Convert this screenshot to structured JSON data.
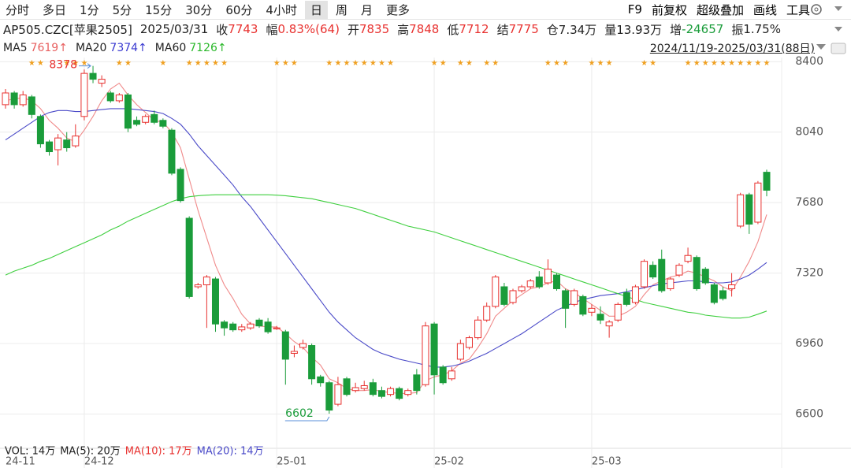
{
  "toolbar": {
    "periods": [
      "分时",
      "多日",
      "1分",
      "5分",
      "15分",
      "30分",
      "60分",
      "4小时",
      "日",
      "周",
      "月",
      "更多"
    ],
    "selected": 8,
    "tools": [
      "F9",
      "前复权",
      "超级叠加",
      "画线",
      "工具"
    ]
  },
  "quote": {
    "code": "AP505.CZC[苹果2505]",
    "date": "2025/03/31",
    "fields": [
      {
        "label": "收",
        "value": "7743",
        "color": "#e8312f"
      },
      {
        "label": "幅",
        "value": "0.83%(64)",
        "color": "#e8312f"
      },
      {
        "label": "开",
        "value": "7835",
        "color": "#e8312f"
      },
      {
        "label": "高",
        "value": "7848",
        "color": "#e8312f"
      },
      {
        "label": "低",
        "value": "7712",
        "color": "#e8312f"
      },
      {
        "label": "结",
        "value": "7775",
        "color": "#e8312f"
      },
      {
        "label": "仓",
        "value": "7.34万",
        "color": "#222"
      },
      {
        "label": "量",
        "value": "13.93万",
        "color": "#222"
      },
      {
        "label": "增",
        "value": "-24657",
        "color": "#1a9c3a"
      },
      {
        "label": "振",
        "value": "1.75%",
        "color": "#222"
      }
    ]
  },
  "range_label": "2024/11/19-2025/03/31(88日)",
  "chart_data": {
    "type": "candlestick",
    "up_color": "#e8312f",
    "down_color": "#1a9c3a",
    "grid": true,
    "categories": [
      "24-11",
      null,
      null,
      null,
      null,
      null,
      null,
      null,
      null,
      "24-12",
      null,
      null,
      null,
      null,
      null,
      null,
      null,
      null,
      null,
      null,
      null,
      null,
      null,
      null,
      null,
      null,
      null,
      null,
      null,
      null,
      null,
      "25-01",
      null,
      null,
      null,
      null,
      null,
      null,
      null,
      null,
      null,
      null,
      null,
      null,
      null,
      null,
      null,
      null,
      null,
      "25-02",
      null,
      null,
      null,
      null,
      null,
      null,
      null,
      null,
      null,
      null,
      null,
      null,
      null,
      null,
      null,
      null,
      null,
      "25-03",
      null,
      null,
      null,
      null,
      null,
      null,
      null,
      null,
      null,
      null,
      null,
      null,
      null,
      null,
      null,
      null,
      null,
      null,
      null,
      null
    ],
    "open": [
      8180,
      8240,
      8180,
      8220,
      8120,
      7990,
      7950,
      8000,
      7970,
      8120,
      8340,
      8290,
      8240,
      8200,
      8230,
      8100,
      8090,
      8130,
      8100,
      8050,
      7850,
      7600,
      7250,
      7260,
      7290,
      7070,
      7060,
      7030,
      7040,
      7080,
      7070,
      7035,
      7020,
      6910,
      6940,
      6950,
      6790,
      6760,
      6650,
      6780,
      6720,
      6730,
      6760,
      6720,
      6700,
      6730,
      6700,
      6800,
      6750,
      7060,
      6840,
      6780,
      6880,
      6940,
      6990,
      7080,
      7150,
      7250,
      7170,
      7230,
      7250,
      7300,
      7270,
      7310,
      7230,
      7160,
      7200,
      7120,
      7110,
      7050,
      7080,
      7220,
      7170,
      7250,
      7360,
      7390,
      7240,
      7310,
      7380,
      7400,
      7340,
      7260,
      7230,
      7240,
      7560,
      7720,
      7580,
      7835
    ],
    "high": [
      8260,
      8250,
      8250,
      8230,
      8130,
      8000,
      8030,
      8040,
      8080,
      8360,
      8378,
      8330,
      8250,
      8240,
      8240,
      8120,
      8130,
      8150,
      8110,
      8060,
      7860,
      7610,
      7270,
      7310,
      7300,
      7080,
      7070,
      7060,
      7070,
      7090,
      7090,
      7050,
      7030,
      6950,
      6980,
      6960,
      6800,
      6770,
      6790,
      6790,
      6760,
      6770,
      6780,
      6740,
      6740,
      6740,
      6730,
      6830,
      7070,
      7070,
      6850,
      6840,
      6980,
      7000,
      7100,
      7170,
      7310,
      7270,
      7240,
      7260,
      7290,
      7330,
      7390,
      7320,
      7240,
      7240,
      7210,
      7160,
      7150,
      7080,
      7170,
      7240,
      7260,
      7390,
      7380,
      7440,
      7300,
      7370,
      7450,
      7410,
      7350,
      7270,
      7250,
      7320,
      7730,
      7730,
      7790,
      7848
    ],
    "low": [
      8160,
      8160,
      8170,
      8110,
      7960,
      7920,
      7870,
      7940,
      7960,
      8100,
      8290,
      8270,
      8190,
      8190,
      8040,
      8070,
      8080,
      8080,
      8060,
      7820,
      7680,
      7190,
      7240,
      7040,
      7020,
      7000,
      7020,
      7020,
      7030,
      7040,
      7010,
      7030,
      6750,
      6890,
      6930,
      6750,
      6740,
      6602,
      6640,
      6690,
      6710,
      6720,
      6690,
      6680,
      6690,
      6670,
      6690,
      6700,
      6740,
      6700,
      6750,
      6770,
      6870,
      6930,
      6980,
      7070,
      7140,
      7150,
      7160,
      7220,
      7240,
      7240,
      7260,
      7230,
      7040,
      7150,
      7100,
      7100,
      7060,
      6990,
      7070,
      7150,
      7160,
      7240,
      7290,
      7220,
      7230,
      7300,
      7370,
      7230,
      7260,
      7160,
      7180,
      7200,
      7550,
      7520,
      7570,
      7712
    ],
    "close": [
      8240,
      8180,
      8230,
      8130,
      7980,
      7940,
      8010,
      7960,
      8020,
      8340,
      8310,
      8310,
      8200,
      8230,
      8060,
      8080,
      8120,
      8090,
      8070,
      7830,
      7690,
      7200,
      7260,
      7300,
      7060,
      7040,
      7030,
      7045,
      7060,
      7050,
      7020,
      7040,
      6880,
      6920,
      6960,
      6780,
      6760,
      6620,
      6750,
      6700,
      6735,
      6745,
      6700,
      6690,
      6730,
      6680,
      6720,
      6720,
      7050,
      6800,
      6760,
      6820,
      6960,
      6990,
      7080,
      7150,
      7300,
      7160,
      7230,
      7250,
      7280,
      7250,
      7340,
      7240,
      7140,
      7230,
      7110,
      7140,
      7080,
      7070,
      7160,
      7160,
      7250,
      7380,
      7300,
      7230,
      7290,
      7360,
      7410,
      7240,
      7270,
      7170,
      7190,
      7260,
      7720,
      7570,
      7780,
      7743
    ],
    "series": [
      {
        "name": "MA5",
        "last_label": "7619↑",
        "color": "#f08a8a",
        "label_color": "#e86060",
        "values": [
          8200,
          8210,
          8215,
          8200,
          8160,
          8100,
          8060,
          8010,
          7990,
          8050,
          8120,
          8200,
          8260,
          8290,
          8230,
          8180,
          8140,
          8100,
          8090,
          8040,
          7960,
          7800,
          7640,
          7500,
          7360,
          7260,
          7190,
          7110,
          7060,
          7050,
          7045,
          7045,
          7010,
          6970,
          6940,
          6890,
          6850,
          6780,
          6760,
          6730,
          6720,
          6720,
          6725,
          6715,
          6710,
          6705,
          6705,
          6710,
          6770,
          6790,
          6800,
          6820,
          6860,
          6880,
          6940,
          7010,
          7100,
          7140,
          7180,
          7210,
          7240,
          7250,
          7270,
          7280,
          7240,
          7220,
          7190,
          7160,
          7130,
          7100,
          7100,
          7120,
          7150,
          7210,
          7260,
          7280,
          7300,
          7310,
          7330,
          7320,
          7300,
          7280,
          7250,
          7230,
          7300,
          7380,
          7480,
          7619
        ]
      },
      {
        "name": "MA20",
        "last_label": "7374↑",
        "color": "#4a4ac8",
        "label_color": "#3a3ad0",
        "values": [
          8000,
          8030,
          8060,
          8090,
          8120,
          8140,
          8150,
          8150,
          8145,
          8145,
          8150,
          8155,
          8160,
          8160,
          8160,
          8155,
          8150,
          8145,
          8135,
          8110,
          8080,
          8030,
          7970,
          7920,
          7870,
          7820,
          7770,
          7710,
          7660,
          7600,
          7540,
          7480,
          7420,
          7360,
          7300,
          7240,
          7180,
          7120,
          7070,
          7030,
          6990,
          6960,
          6930,
          6910,
          6895,
          6880,
          6870,
          6860,
          6850,
          6840,
          6840,
          6845,
          6855,
          6870,
          6890,
          6910,
          6935,
          6960,
          6985,
          7010,
          7040,
          7070,
          7100,
          7130,
          7150,
          7170,
          7185,
          7195,
          7205,
          7210,
          7215,
          7225,
          7235,
          7245,
          7255,
          7265,
          7270,
          7275,
          7280,
          7280,
          7275,
          7270,
          7270,
          7275,
          7290,
          7310,
          7340,
          7374
        ]
      },
      {
        "name": "MA60",
        "last_label": "7126↑",
        "color": "#3fcf3f",
        "label_color": "#2bb82b",
        "values": [
          7310,
          7330,
          7345,
          7360,
          7380,
          7395,
          7415,
          7435,
          7455,
          7475,
          7495,
          7515,
          7540,
          7560,
          7585,
          7605,
          7625,
          7645,
          7665,
          7685,
          7700,
          7710,
          7715,
          7718,
          7720,
          7720,
          7720,
          7720,
          7720,
          7720,
          7720,
          7718,
          7715,
          7710,
          7705,
          7700,
          7690,
          7680,
          7670,
          7660,
          7650,
          7635,
          7620,
          7605,
          7590,
          7575,
          7560,
          7550,
          7540,
          7530,
          7515,
          7500,
          7485,
          7470,
          7455,
          7440,
          7425,
          7410,
          7395,
          7380,
          7365,
          7350,
          7335,
          7320,
          7305,
          7290,
          7275,
          7260,
          7245,
          7230,
          7215,
          7200,
          7185,
          7170,
          7160,
          7150,
          7140,
          7130,
          7120,
          7115,
          7105,
          7100,
          7095,
          7090,
          7090,
          7095,
          7110,
          7126
        ]
      }
    ],
    "stars": [
      null,
      null,
      null,
      "★",
      "★",
      null,
      null,
      "★",
      "★",
      "★",
      null,
      null,
      null,
      "★",
      "★",
      null,
      null,
      null,
      "★",
      null,
      null,
      "★",
      "★",
      "★",
      "★",
      "★",
      null,
      null,
      null,
      null,
      null,
      "★",
      "★",
      "★",
      null,
      null,
      null,
      "★",
      "★",
      "★",
      "★",
      "★",
      "★",
      "★",
      "★",
      null,
      null,
      null,
      null,
      "★",
      "★",
      null,
      "★",
      "★",
      null,
      "★",
      "★",
      null,
      null,
      null,
      null,
      null,
      "★",
      "★",
      "★",
      null,
      null,
      "★",
      "★",
      "★",
      null,
      null,
      null,
      "★",
      "★",
      null,
      null,
      null,
      "★",
      "★",
      "★",
      "★",
      "★",
      "★",
      "★",
      "★",
      "★",
      "★"
    ],
    "star_color": "#f0a020",
    "ylim": [
      6425,
      8421
    ],
    "yticks": [
      8400,
      8040,
      7680,
      7320,
      6960,
      6600
    ],
    "volume_labels": [
      "VOL: 14万",
      "MA(5): 20万",
      "MA(10): 17万",
      "MA(20): 14万"
    ]
  }
}
